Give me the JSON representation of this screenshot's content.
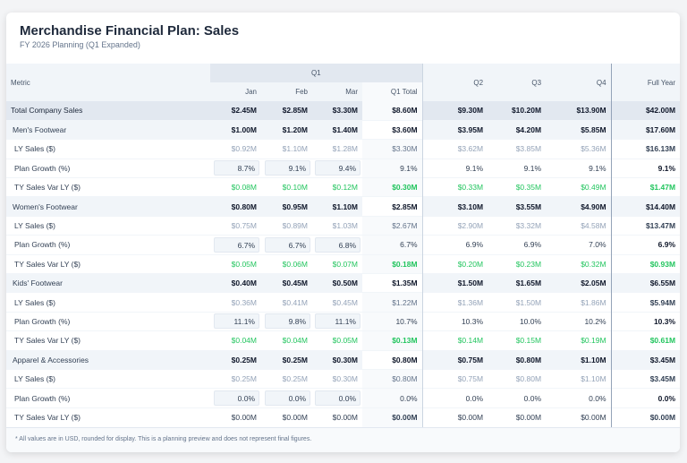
{
  "header": {
    "title": "Merchandise Financial Plan: Sales",
    "subtitle": "FY 2026 Planning (Q1 Expanded)"
  },
  "columns": {
    "metric": "Metric",
    "q1": "Q1",
    "jan": "Jan",
    "feb": "Feb",
    "mar": "Mar",
    "q1_total": "Q1 Total",
    "q2": "Q2",
    "q3": "Q3",
    "q4": "Q4",
    "full_year": "Full Year"
  },
  "rows": [
    {
      "type": "total",
      "label": "Total Company Sales",
      "values": [
        "$2.45M",
        "$2.85M",
        "$3.30M",
        "$8.60M",
        "$9.30M",
        "$10.20M",
        "$13.90M",
        "$42.00M"
      ]
    },
    {
      "type": "cat",
      "label": "Men's Footwear",
      "values": [
        "$1.00M",
        "$1.20M",
        "$1.40M",
        "$3.60M",
        "$3.95M",
        "$4.20M",
        "$5.85M",
        "$17.60M"
      ]
    },
    {
      "type": "ly",
      "label": "LY Sales ($)",
      "values": [
        "$0.92M",
        "$1.10M",
        "$1.28M",
        "$3.30M",
        "$3.62M",
        "$3.85M",
        "$5.36M",
        "$16.13M"
      ]
    },
    {
      "type": "gr",
      "label": "Plan Growth (%)",
      "values": [
        "8.7%",
        "9.1%",
        "9.4%",
        "9.1%",
        "9.1%",
        "9.1%",
        "9.1%",
        "9.1%"
      ]
    },
    {
      "type": "var",
      "label": "TY Sales Var LY ($)",
      "values": [
        "$0.08M",
        "$0.10M",
        "$0.12M",
        "$0.30M",
        "$0.33M",
        "$0.35M",
        "$0.49M",
        "$1.47M"
      ]
    },
    {
      "type": "cat",
      "label": "Women's Footwear",
      "values": [
        "$0.80M",
        "$0.95M",
        "$1.10M",
        "$2.85M",
        "$3.10M",
        "$3.55M",
        "$4.90M",
        "$14.40M"
      ]
    },
    {
      "type": "ly",
      "label": "LY Sales ($)",
      "values": [
        "$0.75M",
        "$0.89M",
        "$1.03M",
        "$2.67M",
        "$2.90M",
        "$3.32M",
        "$4.58M",
        "$13.47M"
      ]
    },
    {
      "type": "gr",
      "label": "Plan Growth (%)",
      "values": [
        "6.7%",
        "6.7%",
        "6.8%",
        "6.7%",
        "6.9%",
        "6.9%",
        "7.0%",
        "6.9%"
      ]
    },
    {
      "type": "var",
      "label": "TY Sales Var LY ($)",
      "values": [
        "$0.05M",
        "$0.06M",
        "$0.07M",
        "$0.18M",
        "$0.20M",
        "$0.23M",
        "$0.32M",
        "$0.93M"
      ]
    },
    {
      "type": "cat",
      "label": "Kids' Footwear",
      "values": [
        "$0.40M",
        "$0.45M",
        "$0.50M",
        "$1.35M",
        "$1.50M",
        "$1.65M",
        "$2.05M",
        "$6.55M"
      ]
    },
    {
      "type": "ly",
      "label": "LY Sales ($)",
      "values": [
        "$0.36M",
        "$0.41M",
        "$0.45M",
        "$1.22M",
        "$1.36M",
        "$1.50M",
        "$1.86M",
        "$5.94M"
      ]
    },
    {
      "type": "gr",
      "label": "Plan Growth (%)",
      "values": [
        "11.1%",
        "9.8%",
        "11.1%",
        "10.7%",
        "10.3%",
        "10.0%",
        "10.2%",
        "10.3%"
      ]
    },
    {
      "type": "var",
      "label": "TY Sales Var LY ($)",
      "values": [
        "$0.04M",
        "$0.04M",
        "$0.05M",
        "$0.13M",
        "$0.14M",
        "$0.15M",
        "$0.19M",
        "$0.61M"
      ]
    },
    {
      "type": "cat",
      "label": "Apparel & Accessories",
      "values": [
        "$0.25M",
        "$0.25M",
        "$0.30M",
        "$0.80M",
        "$0.75M",
        "$0.80M",
        "$1.10M",
        "$3.45M"
      ]
    },
    {
      "type": "ly",
      "label": "LY Sales ($)",
      "values": [
        "$0.25M",
        "$0.25M",
        "$0.30M",
        "$0.80M",
        "$0.75M",
        "$0.80M",
        "$1.10M",
        "$3.45M"
      ]
    },
    {
      "type": "gr",
      "label": "Plan Growth (%)",
      "values": [
        "0.0%",
        "0.0%",
        "0.0%",
        "0.0%",
        "0.0%",
        "0.0%",
        "0.0%",
        "0.0%"
      ]
    },
    {
      "type": "var zero",
      "label": "TY Sales Var LY ($)",
      "values": [
        "$0.00M",
        "$0.00M",
        "$0.00M",
        "$0.00M",
        "$0.00M",
        "$0.00M",
        "$0.00M",
        "$0.00M"
      ]
    }
  ],
  "footer": "* All values are in USD, rounded for display. This is a planning preview and does not represent final figures.",
  "colors": {
    "positive": "#22c55e",
    "header_bg": "#f1f5f9",
    "q1_header_bg": "#e2e8f0"
  }
}
